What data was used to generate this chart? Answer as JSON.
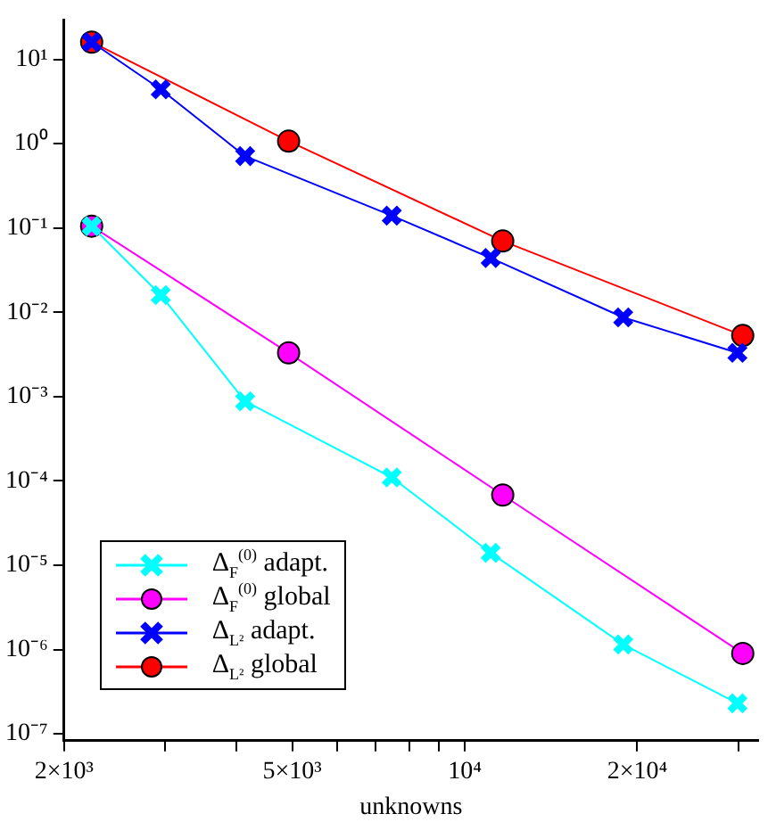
{
  "chart_data": {
    "type": "line",
    "xlabel": "unknowns",
    "log": "xy",
    "grid": false,
    "legend": "bottom left",
    "line_style": "solid",
    "xlim": [
      2000,
      32500
    ],
    "ylim": [
      8.3e-08,
      29
    ],
    "xticks": [
      {
        "value": 2000,
        "label": "2×10³"
      },
      {
        "value": 3000,
        "label": null
      },
      {
        "value": 4000,
        "label": null
      },
      {
        "value": 5000,
        "label": "5×10³"
      },
      {
        "value": 6000,
        "label": null
      },
      {
        "value": 7000,
        "label": null
      },
      {
        "value": 8000,
        "label": null
      },
      {
        "value": 9000,
        "label": null
      },
      {
        "value": 10000,
        "label": "10⁴"
      },
      {
        "value": 20000,
        "label": "2×10⁴"
      },
      {
        "value": 30000,
        "label": null
      }
    ],
    "yticks": [
      {
        "value": 10,
        "label": "10¹"
      },
      {
        "value": 1,
        "label": "10⁰"
      },
      {
        "value": 0.1,
        "label": "10⁻¹"
      },
      {
        "value": 0.01,
        "label": "10⁻²"
      },
      {
        "value": 0.001,
        "label": "10⁻³"
      },
      {
        "value": 0.0001,
        "label": "10⁻⁴"
      },
      {
        "value": 1e-05,
        "label": "10⁻⁵"
      },
      {
        "value": 1e-06,
        "label": "10⁻⁶"
      },
      {
        "value": 1e-07,
        "label": "10⁻⁷"
      }
    ],
    "series": [
      {
        "name": "Δ$_{F}$$^{(0)}$ adapt.",
        "color": "#00ffff",
        "marker": "cross",
        "x": [
          2235,
          2950,
          4140,
          7460,
          11100,
          18900,
          29900
        ],
        "values": [
          0.105,
          0.016,
          0.00088,
          0.00011,
          1.4e-05,
          1.15e-06,
          2.3e-07
        ]
      },
      {
        "name": "Δ$_{F}$$^{(0)}$ global",
        "color": "#ff00ff",
        "marker": "circle",
        "x": [
          2235,
          4930,
          11650,
          30550
        ],
        "values": [
          0.105,
          0.0033,
          6.8e-05,
          9e-07
        ]
      },
      {
        "name": "Δ$_{L²}$ adapt.",
        "color": "#0000ff",
        "marker": "cross",
        "x": [
          2235,
          2950,
          4140,
          7460,
          11100,
          18900,
          29900
        ],
        "values": [
          16,
          4.4,
          0.71,
          0.14,
          0.044,
          0.0087,
          0.0033
        ]
      },
      {
        "name": "Δ$_{L²}$ global",
        "color": "#ff0000",
        "marker": "circle",
        "x": [
          2235,
          4930,
          11650,
          30550
        ],
        "values": [
          16,
          1.07,
          0.07,
          0.0053
        ]
      }
    ]
  }
}
